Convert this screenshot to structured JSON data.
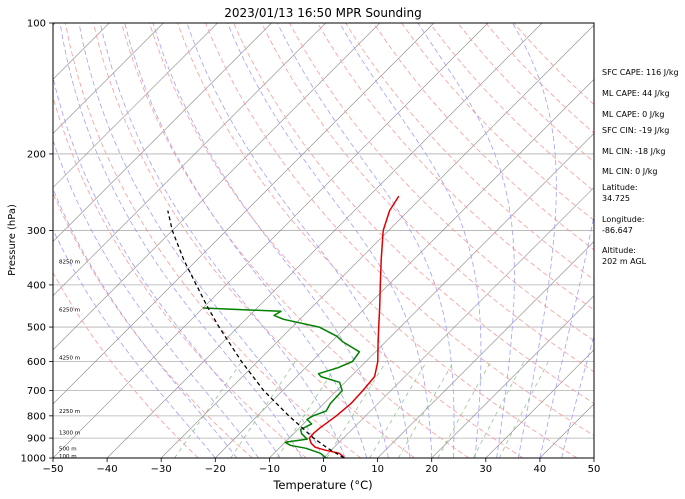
{
  "chart_data": {
    "type": "skew-t",
    "title": "2023/01/13 16:50 MPR Sounding",
    "xlabel": "Temperature (°C)",
    "ylabel": "Pressure (hPa)",
    "xlim": [
      -50,
      50
    ],
    "ylim": [
      1000,
      100
    ],
    "y_scale": "log",
    "grid": true,
    "x_ticks": [
      "−50",
      "−40",
      "−30",
      "−20",
      "−10",
      "0",
      "10",
      "20",
      "30",
      "40",
      "50"
    ],
    "y_ticks": [
      "100",
      "200",
      "300",
      "400",
      "500",
      "600",
      "700",
      "800",
      "900",
      "1000"
    ],
    "series": [
      {
        "color": "#e00000",
        "points": [
          [
            1000,
            3.8
          ],
          [
            990,
            3.2
          ],
          [
            975,
            2.0
          ],
          [
            960,
            -1.0
          ],
          [
            945,
            -3.5
          ],
          [
            925,
            -5.0
          ],
          [
            900,
            -6.3
          ],
          [
            875,
            -6.4
          ],
          [
            850,
            -6.2
          ],
          [
            825,
            -5.8
          ],
          [
            800,
            -5.4
          ],
          [
            775,
            -5.2
          ],
          [
            750,
            -5.0
          ],
          [
            700,
            -5.2
          ],
          [
            650,
            -5.6
          ],
          [
            600,
            -7.8
          ],
          [
            550,
            -10.8
          ],
          [
            500,
            -14.0
          ],
          [
            450,
            -17.5
          ],
          [
            400,
            -21.5
          ],
          [
            350,
            -26.0
          ],
          [
            300,
            -31.0
          ],
          [
            270,
            -33.5
          ],
          [
            250,
            -34.5
          ]
        ]
      },
      {
        "color": "#008000",
        "points": [
          [
            1000,
            0.5
          ],
          [
            975,
            -1.5
          ],
          [
            950,
            -5.0
          ],
          [
            935,
            -8.5
          ],
          [
            920,
            -10.0
          ],
          [
            905,
            -6.5
          ],
          [
            880,
            -8.5
          ],
          [
            860,
            -9.5
          ],
          [
            835,
            -8.5
          ],
          [
            815,
            -10.2
          ],
          [
            800,
            -9.7
          ],
          [
            780,
            -8.2
          ],
          [
            750,
            -8.8
          ],
          [
            700,
            -9.0
          ],
          [
            670,
            -11.0
          ],
          [
            650,
            -15.5
          ],
          [
            640,
            -16.5
          ],
          [
            620,
            -14.0
          ],
          [
            600,
            -12.5
          ],
          [
            570,
            -13.0
          ],
          [
            540,
            -18.0
          ],
          [
            525,
            -20.0
          ],
          [
            500,
            -25.0
          ],
          [
            480,
            -33.0
          ],
          [
            470,
            -35.5
          ],
          [
            460,
            -35.0
          ],
          [
            452,
            -50.0
          ]
        ]
      },
      {
        "color": "#000000",
        "dashed": true,
        "points": [
          [
            1000,
            3.8
          ],
          [
            950,
            -1.0
          ],
          [
            900,
            -5.5
          ],
          [
            850,
            -9.7
          ],
          [
            800,
            -14.2
          ],
          [
            700,
            -23.5
          ],
          [
            600,
            -33.0
          ],
          [
            500,
            -43.5
          ],
          [
            450,
            -49.3
          ],
          [
            400,
            -55.5
          ],
          [
            350,
            -62.5
          ],
          [
            300,
            -70.0
          ],
          [
            270,
            -74.5
          ]
        ]
      }
    ],
    "height_labels": [
      {
        "p": 353,
        "text": "8250 m"
      },
      {
        "p": 456,
        "text": "6250 m"
      },
      {
        "p": 587,
        "text": "4250 m"
      },
      {
        "p": 779,
        "text": "2250 m"
      },
      {
        "p": 873,
        "text": "1300 m"
      },
      {
        "p": 952,
        "text": "500 m"
      },
      {
        "p": 990,
        "text": "100 m"
      }
    ]
  },
  "stats": {
    "sfc_cape": "SFC CAPE: 116 J/kg",
    "ml_cape": "ML CAPE: 44 J/kg",
    "ml_cape2": "ML CAPE: 0 J/kg",
    "sfc_cin": "SFC CIN: -19 J/kg",
    "ml_cin": "ML CIN: -18 J/kg",
    "ml_cin2": "ML CIN: 0 J/kg",
    "latitude_label": "Latitude:",
    "latitude_value": "34.725",
    "longitude_label": "Longitude:",
    "longitude_value": "-86.647",
    "altitude_label": "Altitude:",
    "altitude_value": "202 m AGL"
  },
  "colors": {
    "temperature": "#e00000",
    "dewpoint": "#008000",
    "parcel": "#000000",
    "isotherm": "#888888",
    "dry_adiabat": "#ff9a9a",
    "moist_adiabat": "#a0a0ff",
    "mixing_ratio": "#80c080"
  }
}
